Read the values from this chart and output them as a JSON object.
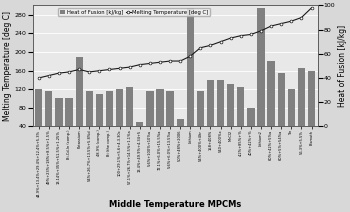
{
  "categories": [
    "44.9%+13.4%+29.4%+12.4%+5.3%",
    "49%+23%+18%+8.5%+1.5%",
    "13.14%+35%+51.5%+1.25%",
    "Bi-Cd-In (comp.)",
    "Potassium",
    "54%+26.7%+13.5%+5.8%d",
    "48.9% (comp.)",
    "Bi (the comp.)",
    "100+29.1%+5.6+4-3.30c",
    "57.1%+26.7%+14.5%+1.1%a",
    "13.4%+49.9%+4.34+5",
    "5.6%+100%+10%a",
    "72.1%+6.0%+15.5%a",
    "5.6%+6.0%+13.5%a",
    "50%+48%+2006",
    "Lithium",
    "54%+400%+4ltr",
    "158+408%",
    "540+400%x",
    "MnCl2",
    "4.2%+85%+%",
    "40%+42%+%",
    "Lithium2",
    "60%+42%+5%a",
    "60%+5%+54%a",
    "Tin",
    "56.3%+5.5%",
    "Bismuth"
  ],
  "heat_of_fusion": [
    120,
    115,
    100,
    100,
    190,
    115,
    110,
    115,
    120,
    125,
    50,
    115,
    120,
    115,
    55,
    295,
    115,
    140,
    140,
    130,
    125,
    80,
    295,
    180,
    155,
    120,
    165,
    160
  ],
  "melting_temp": [
    40,
    42,
    44,
    45,
    47,
    45,
    46,
    47,
    48,
    49,
    51,
    52,
    53,
    54,
    54,
    58,
    65,
    67,
    70,
    73,
    75,
    76,
    79,
    83,
    85,
    87,
    90,
    98
  ],
  "bar_color": "#808080",
  "line_color": "#1a1a1a",
  "marker_face": "#ffffff",
  "bg_color": "#d8d8d8",
  "plot_bg": "#e8e8e8",
  "ylabel_left": "Melting Temperature [deg C]",
  "ylabel_right": "Heat of Fusion [kJ/kg]",
  "xlabel": "Middle Temperature MPCMs",
  "legend_hof": "Heat of Fusion [kJ/kg]",
  "legend_melt": "Melting Temperature [deg C]",
  "ylim_left": [
    40,
    300
  ],
  "ylim_right": [
    0,
    100
  ],
  "yticks_left": [
    40,
    80,
    120,
    160,
    200,
    240,
    280
  ],
  "yticks_right": [
    0,
    20,
    40,
    60,
    80,
    100
  ],
  "grid_color": "#ffffff",
  "title_fontsize": 4.5,
  "tick_fontsize": 4.5,
  "label_fontsize": 5.5,
  "xlabel_fontsize": 6.0
}
